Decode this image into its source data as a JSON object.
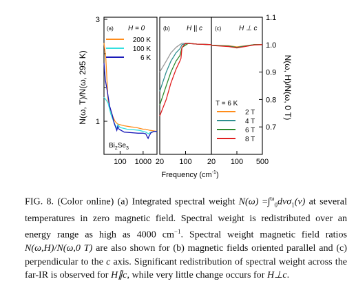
{
  "figure": {
    "left_axis_label": "N(ω, T)/N(ω, 295 K)",
    "right_axis_label": "N(ω, H)/N(ω, 0 T)",
    "x_axis_label": "Frequency (cm",
    "x_axis_label_exp": "-1",
    "x_axis_label_end": ")",
    "sample_label": "Bi",
    "sample_sub1": "2",
    "sample_mid": "Se",
    "sample_sub2": "3",
    "panels": [
      {
        "id": "a",
        "label": "(a)",
        "title": "H = 0"
      },
      {
        "id": "b",
        "label": "(b)",
        "title": "H || c"
      },
      {
        "id": "c",
        "label": "(c)",
        "title": "H ⊥ c"
      }
    ]
  },
  "chart_data": [
    {
      "panel": "a",
      "type": "line",
      "x_scale": "log",
      "xlim": [
        20,
        4000
      ],
      "ylim": [
        0.6,
        3.0
      ],
      "ylabel": "N(ω, T)/N(ω, 295 K)",
      "x_ticks": [
        100,
        1000
      ],
      "x_tick_labels": [
        "100",
        "1000"
      ],
      "y_tick_labels": [
        "1",
        "3"
      ],
      "legend": [
        {
          "name": "200 K",
          "color": "#ff8c1a"
        },
        {
          "name": "100 K",
          "color": "#33e0e0"
        },
        {
          "name": "6 K",
          "color": "#1a1ab8"
        }
      ],
      "series": [
        {
          "name": "200 K",
          "color": "#ff8c1a",
          "points": [
            [
              20,
              2.55
            ],
            [
              24,
              2.3
            ],
            [
              30,
              1.55
            ],
            [
              40,
              1.35
            ],
            [
              50,
              1.25
            ],
            [
              60,
              1.18
            ],
            [
              70,
              1.15
            ],
            [
              80,
              1.13
            ],
            [
              150,
              1.1
            ],
            [
              300,
              1.08
            ],
            [
              500,
              1.07
            ],
            [
              800,
              1.05
            ],
            [
              1000,
              1.04
            ],
            [
              1300,
              1.04
            ],
            [
              2000,
              1.02
            ],
            [
              3000,
              1.01
            ],
            [
              4000,
              1.0
            ]
          ]
        },
        {
          "name": "100 K",
          "color": "#33e0e0",
          "points": [
            [
              20,
              1.6
            ],
            [
              25,
              1.55
            ],
            [
              30,
              1.5
            ],
            [
              40,
              1.3
            ],
            [
              50,
              1.2
            ],
            [
              60,
              1.12
            ],
            [
              75,
              1.05
            ],
            [
              80,
              1.12
            ],
            [
              100,
              1.07
            ],
            [
              200,
              1.04
            ],
            [
              400,
              1.03
            ],
            [
              700,
              1.02
            ],
            [
              1000,
              1.0
            ],
            [
              1300,
              0.99
            ],
            [
              1700,
              0.96
            ],
            [
              2000,
              0.98
            ],
            [
              3000,
              1.0
            ],
            [
              4000,
              1.0
            ]
          ]
        },
        {
          "name": "6 K",
          "color": "#1a1ab8",
          "points": [
            [
              20,
              2.2
            ],
            [
              23,
              1.9
            ],
            [
              28,
              1.7
            ],
            [
              35,
              1.45
            ],
            [
              45,
              1.3
            ],
            [
              55,
              1.15
            ],
            [
              65,
              1.07
            ],
            [
              72,
              1.02
            ],
            [
              80,
              1.09
            ],
            [
              90,
              1.04
            ],
            [
              150,
              0.99
            ],
            [
              300,
              0.98
            ],
            [
              600,
              0.97
            ],
            [
              1000,
              0.97
            ],
            [
              1300,
              0.96
            ],
            [
              1500,
              0.91
            ],
            [
              1650,
              0.88
            ],
            [
              1800,
              0.92
            ],
            [
              2200,
              0.98
            ],
            [
              3000,
              1.0
            ],
            [
              4000,
              1.0
            ]
          ]
        }
      ]
    },
    {
      "panel": "b",
      "type": "line",
      "x_scale": "log",
      "xlim": [
        20,
        500
      ],
      "ylim": [
        0.6,
        1.1
      ],
      "x_ticks": [
        20,
        100
      ],
      "x_tick_labels": [
        "20",
        "100"
      ],
      "series": [
        {
          "name": "T = 6 K, 2 T",
          "color": "#999999",
          "points": [
            [
              20,
              0.9
            ],
            [
              30,
              0.94
            ],
            [
              40,
              0.97
            ],
            [
              55,
              0.99
            ],
            [
              70,
              1.0
            ],
            [
              80,
              1.005
            ],
            [
              120,
              1.005
            ],
            [
              200,
              1.002
            ],
            [
              500,
              1.0
            ]
          ]
        },
        {
          "name": "T = 6 K, 4 T",
          "color": "#2f8f8f",
          "points": [
            [
              20,
              0.83
            ],
            [
              30,
              0.9
            ],
            [
              40,
              0.94
            ],
            [
              55,
              0.97
            ],
            [
              70,
              0.985
            ],
            [
              80,
              1.0
            ],
            [
              120,
              1.005
            ],
            [
              200,
              1.002
            ],
            [
              500,
              1.0
            ]
          ]
        },
        {
          "name": "T = 6 K, 6 T",
          "color": "#2e8b2e",
          "points": [
            [
              20,
              0.78
            ],
            [
              30,
              0.85
            ],
            [
              40,
              0.9
            ],
            [
              55,
              0.94
            ],
            [
              70,
              0.96
            ],
            [
              80,
              0.99
            ],
            [
              120,
              1.005
            ],
            [
              200,
              1.002
            ],
            [
              500,
              1.0
            ]
          ]
        },
        {
          "name": "T = 6 K, 8 T",
          "color": "#e02020",
          "points": [
            [
              20,
              0.74
            ],
            [
              30,
              0.8
            ],
            [
              40,
              0.86
            ],
            [
              55,
              0.91
            ],
            [
              70,
              0.94
            ],
            [
              75,
              0.95
            ],
            [
              80,
              0.99
            ],
            [
              100,
              1.005
            ],
            [
              200,
              1.002
            ],
            [
              500,
              1.0
            ]
          ]
        }
      ]
    },
    {
      "panel": "c",
      "type": "line",
      "x_scale": "log",
      "xlim": [
        20,
        500
      ],
      "ylim": [
        0.6,
        1.1
      ],
      "ylabel": "N(ω, H)/N(ω, 0 T)",
      "x_ticks": [
        20,
        100,
        500
      ],
      "x_tick_labels": [
        "20",
        "100",
        "500"
      ],
      "y_tick_labels": [
        "0.7",
        "0.8",
        "0.9",
        "1.0",
        "1.1"
      ],
      "legend_title": "T = 6 K",
      "legend": [
        {
          "name": "2 T",
          "color": "#ff8c1a"
        },
        {
          "name": "4 T",
          "color": "#2f8f8f"
        },
        {
          "name": "6 T",
          "color": "#2e8b2e"
        },
        {
          "name": "8 T",
          "color": "#e02020"
        }
      ],
      "series": [
        {
          "name": "2 T",
          "color": "#ff8c1a",
          "points": [
            [
              20,
              0.998
            ],
            [
              60,
              0.996
            ],
            [
              100,
              0.992
            ],
            [
              150,
              0.995
            ],
            [
              300,
              1.0
            ],
            [
              500,
              1.0
            ]
          ]
        },
        {
          "name": "4 T",
          "color": "#2f8f8f",
          "points": [
            [
              20,
              0.998
            ],
            [
              60,
              0.995
            ],
            [
              100,
              0.99
            ],
            [
              150,
              0.994
            ],
            [
              300,
              1.0
            ],
            [
              500,
              1.0
            ]
          ]
        },
        {
          "name": "6 T",
          "color": "#2e8b2e",
          "points": [
            [
              20,
              0.998
            ],
            [
              60,
              0.994
            ],
            [
              100,
              0.989
            ],
            [
              150,
              0.993
            ],
            [
              300,
              1.0
            ],
            [
              500,
              1.0
            ]
          ]
        },
        {
          "name": "8 T",
          "color": "#e02020",
          "points": [
            [
              20,
              0.997
            ],
            [
              60,
              0.993
            ],
            [
              100,
              0.988
            ],
            [
              150,
              0.992
            ],
            [
              300,
              0.999
            ],
            [
              500,
              1.0
            ]
          ]
        }
      ]
    }
  ],
  "caption": {
    "l1a": "FIG. 8. (Color online) (a) Integrated spectral weight ",
    "l1b": "N(ω)",
    "l2a": "=∫",
    "l2sup": "ω",
    "l2sub": "0",
    "l2b": "dνσ",
    "l2c": "1",
    "l2d": "(ν)",
    "l2e": " at several temperatures in zero magnetic field. Spectral weight is redistributed over an energy range as high as 4000 cm",
    "l2f": "−1",
    "l2g": ". Spectral weight magnetic field ratios ",
    "l2h": "N(ω,H)/N(ω,0 T)",
    "l2i": " are also shown for (b) magnetic fields oriented parallel and (c) perpendicular to the ",
    "l2j": "c",
    "l2k": " axis. Significant redistribution of spectral weight across the far-IR is observed for ",
    "l2l": "H∥c",
    "l2m": ", while very little change occurs for ",
    "l2n": "H⊥c",
    "l2o": "."
  }
}
